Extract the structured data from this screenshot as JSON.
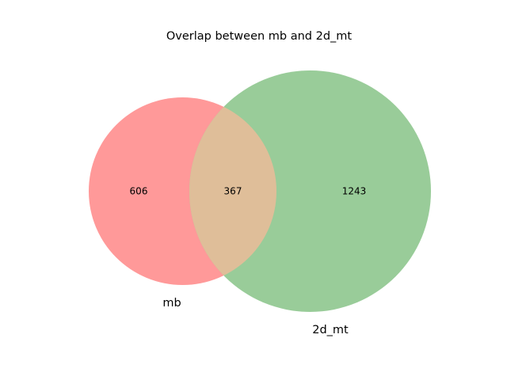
{
  "title": "Overlap between mb and 2d_mt",
  "sets": [
    {
      "name": "mb",
      "only_count": "606",
      "color": "#ff9999"
    },
    {
      "name": "2d_mt",
      "only_count": "1243",
      "color": "#99cc99"
    }
  ],
  "intersection": {
    "count": "367",
    "color": "#dfbe99"
  },
  "chart_data": {
    "type": "venn",
    "title": "Overlap between mb and 2d_mt",
    "sets": [
      "mb",
      "2d_mt"
    ],
    "regions": {
      "mb_only": 606,
      "2d_mt_only": 1243,
      "mb_and_2d_mt": 367
    }
  }
}
